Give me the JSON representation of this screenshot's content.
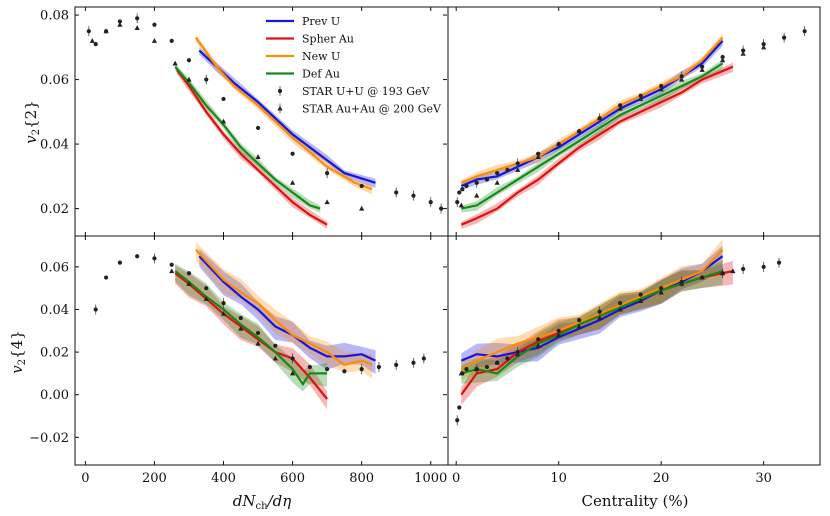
{
  "chart_data": [
    {
      "panel": "top-left",
      "type": "line",
      "ylabel": "v2{2}",
      "xlabel": "dNch/dη",
      "xlim": [
        -30,
        1050
      ],
      "ylim": [
        0.0115,
        0.0825
      ],
      "xticks": [
        0,
        200,
        400,
        600,
        800,
        1000
      ],
      "yticks": [
        0.02,
        0.04,
        0.06,
        0.08
      ],
      "ytick_labels": [
        "0.02",
        "0.04",
        "0.06",
        "0.08"
      ],
      "series": [
        {
          "name": "Prev U",
          "color": "#1515e0",
          "x": [
            330,
            380,
            430,
            500,
            600,
            700,
            750,
            840
          ],
          "y": [
            0.069,
            0.064,
            0.059,
            0.053,
            0.043,
            0.035,
            0.031,
            0.028
          ]
        },
        {
          "name": "Spher Au",
          "color": "#e01010",
          "x": [
            265,
            300,
            350,
            400,
            450,
            500,
            550,
            600,
            650,
            700
          ],
          "y": [
            0.063,
            0.058,
            0.05,
            0.043,
            0.037,
            0.032,
            0.027,
            0.022,
            0.018,
            0.015
          ]
        },
        {
          "name": "New U",
          "color": "#ff8c00",
          "x": [
            320,
            380,
            430,
            500,
            600,
            700,
            780,
            830
          ],
          "y": [
            0.073,
            0.064,
            0.058,
            0.052,
            0.042,
            0.033,
            0.028,
            0.026
          ]
        },
        {
          "name": "Def Au",
          "color": "#168a16",
          "x": [
            260,
            300,
            350,
            400,
            450,
            500,
            550,
            600,
            650,
            680
          ],
          "y": [
            0.064,
            0.059,
            0.052,
            0.046,
            0.039,
            0.034,
            0.029,
            0.025,
            0.021,
            0.02
          ]
        }
      ],
      "star_uu": {
        "x": [
          10,
          30,
          60,
          100,
          150,
          200,
          250,
          300,
          350,
          400,
          500,
          600,
          700,
          800,
          900,
          950,
          1000,
          1030
        ],
        "y": [
          0.075,
          0.071,
          0.075,
          0.078,
          0.079,
          0.077,
          0.072,
          0.066,
          0.06,
          0.054,
          0.045,
          0.037,
          0.031,
          0.027,
          0.025,
          0.024,
          0.022,
          0.02
        ]
      },
      "star_auau": {
        "x": [
          20,
          60,
          100,
          150,
          200,
          260,
          300,
          400,
          500,
          600,
          700,
          800
        ],
        "y": [
          0.072,
          0.075,
          0.077,
          0.076,
          0.072,
          0.065,
          0.06,
          0.047,
          0.036,
          0.028,
          0.022,
          0.02
        ]
      }
    },
    {
      "panel": "top-right",
      "type": "line",
      "xlabel": "Centrality (%)",
      "xlim": [
        -0.8,
        35.5
      ],
      "ylim": [
        0.0115,
        0.0825
      ],
      "xticks": [
        0,
        10,
        20,
        30
      ],
      "series": [
        {
          "name": "Prev U",
          "color": "#1515e0",
          "x": [
            0.5,
            2,
            4,
            6,
            8,
            10,
            12,
            14,
            16,
            18,
            20,
            22,
            24,
            26
          ],
          "y": [
            0.027,
            0.029,
            0.03,
            0.033,
            0.036,
            0.039,
            0.043,
            0.047,
            0.051,
            0.054,
            0.057,
            0.061,
            0.065,
            0.072
          ]
        },
        {
          "name": "Spher Au",
          "color": "#e01010",
          "x": [
            0.5,
            2,
            4,
            6,
            8,
            10,
            12,
            14,
            16,
            18,
            20,
            22,
            24,
            27
          ],
          "y": [
            0.015,
            0.017,
            0.02,
            0.025,
            0.029,
            0.034,
            0.039,
            0.043,
            0.047,
            0.05,
            0.053,
            0.056,
            0.06,
            0.064
          ]
        },
        {
          "name": "New U",
          "color": "#ff8c00",
          "x": [
            0.5,
            2,
            4,
            6,
            8,
            10,
            12,
            14,
            16,
            18,
            20,
            22,
            24,
            26
          ],
          "y": [
            0.028,
            0.03,
            0.032,
            0.034,
            0.036,
            0.04,
            0.044,
            0.048,
            0.052,
            0.055,
            0.058,
            0.061,
            0.066,
            0.073
          ]
        },
        {
          "name": "Def Au",
          "color": "#168a16",
          "x": [
            0.5,
            2,
            4,
            6,
            8,
            10,
            12,
            14,
            16,
            18,
            20,
            22,
            24,
            26
          ],
          "y": [
            0.02,
            0.021,
            0.025,
            0.029,
            0.033,
            0.037,
            0.041,
            0.045,
            0.049,
            0.052,
            0.055,
            0.058,
            0.061,
            0.065
          ]
        }
      ],
      "star_uu": {
        "x": [
          0.1,
          0.3,
          0.6,
          1,
          2,
          3,
          4,
          5,
          6,
          8,
          10,
          12,
          14,
          16,
          18,
          20,
          22,
          24,
          26,
          28,
          30,
          32,
          34
        ],
        "y": [
          0.022,
          0.025,
          0.026,
          0.027,
          0.028,
          0.029,
          0.031,
          0.032,
          0.034,
          0.037,
          0.04,
          0.044,
          0.048,
          0.052,
          0.055,
          0.058,
          0.061,
          0.064,
          0.067,
          0.069,
          0.071,
          0.073,
          0.075
        ]
      },
      "star_auau": {
        "x": [
          0.5,
          2,
          4,
          6,
          8,
          10,
          12,
          14,
          16,
          18,
          20,
          22,
          24,
          26,
          28,
          30
        ],
        "y": [
          0.021,
          0.024,
          0.028,
          0.032,
          0.036,
          0.04,
          0.044,
          0.048,
          0.051,
          0.054,
          0.057,
          0.06,
          0.063,
          0.066,
          0.068,
          0.07
        ]
      }
    },
    {
      "panel": "bottom-left",
      "type": "line",
      "ylabel": "v2{4}",
      "xlabel": "dNch/dη",
      "xlim": [
        -30,
        1050
      ],
      "ylim": [
        -0.033,
        0.0745
      ],
      "xticks": [
        0,
        200,
        400,
        600,
        800,
        1000
      ],
      "xtick_labels": [
        "0",
        "200",
        "400",
        "600",
        "800",
        "1000"
      ],
      "yticks": [
        -0.02,
        0.0,
        0.02,
        0.04,
        0.06
      ],
      "ytick_labels": [
        "−0.02",
        "0.00",
        "0.02",
        "0.04",
        "0.06"
      ],
      "series": [
        {
          "name": "Prev U",
          "color": "#1515e0",
          "x": [
            330,
            400,
            450,
            500,
            550,
            600,
            650,
            700,
            750,
            800,
            840
          ],
          "y": [
            0.065,
            0.053,
            0.046,
            0.04,
            0.032,
            0.028,
            0.022,
            0.018,
            0.018,
            0.019,
            0.016
          ]
        },
        {
          "name": "Spher Au",
          "color": "#e01010",
          "x": [
            260,
            300,
            350,
            400,
            450,
            500,
            550,
            600,
            650,
            700
          ],
          "y": [
            0.057,
            0.052,
            0.045,
            0.038,
            0.032,
            0.026,
            0.02,
            0.017,
            0.008,
            -0.002
          ]
        },
        {
          "name": "New U",
          "color": "#ff8c00",
          "x": [
            320,
            400,
            450,
            500,
            550,
            600,
            650,
            700,
            750,
            800,
            830
          ],
          "y": [
            0.068,
            0.054,
            0.048,
            0.043,
            0.035,
            0.028,
            0.024,
            0.02,
            0.014,
            0.016,
            0.014
          ]
        },
        {
          "name": "Def Au",
          "color": "#168a16",
          "x": [
            260,
            300,
            350,
            400,
            450,
            500,
            550,
            600,
            630,
            650,
            700
          ],
          "y": [
            0.058,
            0.053,
            0.046,
            0.04,
            0.033,
            0.027,
            0.02,
            0.012,
            0.005,
            0.01,
            0.01
          ]
        }
      ],
      "star_uu": {
        "x": [
          30,
          60,
          100,
          150,
          200,
          250,
          300,
          350,
          400,
          450,
          500,
          550,
          600,
          650,
          700,
          750,
          800,
          850,
          900,
          950,
          980
        ],
        "y": [
          0.04,
          0.055,
          0.062,
          0.065,
          0.064,
          0.061,
          0.057,
          0.05,
          0.043,
          0.036,
          0.029,
          0.023,
          0.017,
          0.013,
          0.012,
          0.011,
          0.012,
          0.013,
          0.014,
          0.015,
          0.017
        ]
      },
      "star_auau": {
        "x": [
          250,
          300,
          350,
          400,
          450,
          500,
          550,
          600
        ],
        "y": [
          0.058,
          0.052,
          0.045,
          0.038,
          0.031,
          0.024,
          0.017,
          0.01
        ]
      }
    },
    {
      "panel": "bottom-right",
      "type": "line",
      "xlabel": "Centrality (%)",
      "xlim": [
        -0.8,
        35.5
      ],
      "ylim": [
        -0.033,
        0.0745
      ],
      "xticks": [
        0,
        10,
        20,
        30
      ],
      "xtick_labels": [
        "0",
        "10",
        "20",
        "30"
      ],
      "series": [
        {
          "name": "Prev U",
          "color": "#1515e0",
          "x": [
            0.5,
            2,
            4,
            6,
            8,
            10,
            12,
            14,
            16,
            18,
            20,
            22,
            24,
            26
          ],
          "y": [
            0.016,
            0.019,
            0.018,
            0.02,
            0.022,
            0.027,
            0.031,
            0.035,
            0.04,
            0.044,
            0.049,
            0.053,
            0.058,
            0.065
          ]
        },
        {
          "name": "Spher Au",
          "color": "#e01010",
          "x": [
            0.5,
            2,
            4,
            6,
            8,
            10,
            12,
            14,
            16,
            18,
            20,
            22,
            24,
            27
          ],
          "y": [
            0.0,
            0.01,
            0.012,
            0.02,
            0.025,
            0.029,
            0.033,
            0.037,
            0.041,
            0.045,
            0.049,
            0.052,
            0.055,
            0.058
          ]
        },
        {
          "name": "New U",
          "color": "#ff8c00",
          "x": [
            0.5,
            2,
            4,
            6,
            8,
            10,
            12,
            14,
            16,
            18,
            20,
            22,
            24,
            26
          ],
          "y": [
            0.012,
            0.016,
            0.02,
            0.024,
            0.027,
            0.03,
            0.034,
            0.038,
            0.042,
            0.046,
            0.05,
            0.054,
            0.058,
            0.068
          ]
        },
        {
          "name": "Def Au",
          "color": "#168a16",
          "x": [
            0.5,
            2,
            4,
            6,
            8,
            10,
            12,
            14,
            16,
            18,
            20,
            22,
            24,
            26
          ],
          "y": [
            0.01,
            0.012,
            0.01,
            0.018,
            0.024,
            0.028,
            0.033,
            0.037,
            0.041,
            0.045,
            0.049,
            0.052,
            0.055,
            0.058
          ]
        }
      ],
      "star_uu": {
        "x": [
          0.1,
          0.3,
          0.6,
          1,
          2,
          3,
          4,
          5,
          6,
          8,
          10,
          12,
          14,
          16,
          18,
          20,
          22,
          24,
          26,
          28,
          30,
          31.5
        ],
        "y": [
          -0.012,
          -0.006,
          0.01,
          0.012,
          0.012,
          0.013,
          0.015,
          0.017,
          0.02,
          0.026,
          0.03,
          0.035,
          0.039,
          0.043,
          0.047,
          0.05,
          0.053,
          0.055,
          0.057,
          0.059,
          0.06,
          0.062
        ]
      },
      "star_auau": {
        "x": [
          0.5,
          2,
          4,
          6,
          8,
          10,
          12,
          14,
          16,
          18,
          20,
          22,
          24,
          26,
          27
        ],
        "y": [
          0.01,
          0.012,
          0.015,
          0.019,
          0.023,
          0.028,
          0.032,
          0.036,
          0.04,
          0.044,
          0.048,
          0.052,
          0.055,
          0.057,
          0.058
        ]
      }
    }
  ],
  "legend": {
    "position": "top-left panel, upper center",
    "entries": [
      {
        "label": "Prev U",
        "color": "#1515e0",
        "kind": "line"
      },
      {
        "label": "Spher Au",
        "color": "#e01010",
        "kind": "line"
      },
      {
        "label": "New U",
        "color": "#ff8c00",
        "kind": "line"
      },
      {
        "label": "Def Au",
        "color": "#168a16",
        "kind": "line"
      },
      {
        "label": "STAR U+U @ 193 GeV",
        "color": "#222222",
        "kind": "circle"
      },
      {
        "label": "STAR Au+Au @ 200 GeV",
        "color": "#222222",
        "kind": "triangle"
      }
    ]
  }
}
